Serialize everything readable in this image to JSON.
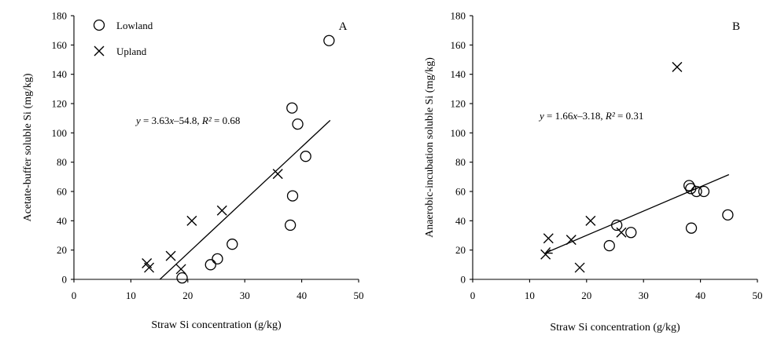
{
  "chart_data": [
    {
      "type": "scatter",
      "panel_label": "A",
      "xlabel": "Straw Si concentration (g/kg)",
      "ylabel": "Acetate-buffer soluble Si (mg/kg)",
      "xlim": [
        0,
        50
      ],
      "ylim": [
        0,
        180
      ],
      "x_ticks": [
        0,
        10,
        20,
        30,
        40,
        50
      ],
      "y_ticks": [
        0,
        20,
        40,
        60,
        80,
        100,
        120,
        140,
        160,
        180
      ],
      "grid": false,
      "legend": {
        "placement": "top-left",
        "entries": [
          "Lowland",
          "Upland"
        ]
      },
      "series": [
        {
          "name": "Lowland",
          "marker": "circle",
          "points": [
            [
              19,
              1
            ],
            [
              24,
              10
            ],
            [
              25.2,
              14
            ],
            [
              27.8,
              24
            ],
            [
              38,
              37
            ],
            [
              38.4,
              57
            ],
            [
              38.3,
              117
            ],
            [
              39.3,
              106
            ],
            [
              40.7,
              84
            ],
            [
              44.8,
              163
            ]
          ]
        },
        {
          "name": "Upland",
          "marker": "cross",
          "points": [
            [
              12.8,
              11
            ],
            [
              13.2,
              8
            ],
            [
              17,
              16
            ],
            [
              18.8,
              7
            ],
            [
              20.7,
              40
            ],
            [
              26,
              47
            ],
            [
              35.8,
              72
            ]
          ]
        }
      ],
      "fit": {
        "equation_parts": {
          "y": "y",
          "rhs": " = 3.63",
          "x": "x",
          "const": "–54.8, ",
          "r2": "R²",
          "r2val": " = 0.68"
        },
        "slope": 3.63,
        "intercept": -54.8,
        "x_range": [
          15.1,
          45
        ]
      }
    },
    {
      "type": "scatter",
      "panel_label": "B",
      "xlabel": "Straw Si concentration (g/kg)",
      "ylabel": "Anaerobic-incubation soluble Si (mg/kg)",
      "xlim": [
        0,
        50
      ],
      "ylim": [
        0,
        180
      ],
      "x_ticks": [
        0,
        10,
        20,
        30,
        40,
        50
      ],
      "y_ticks": [
        0,
        20,
        40,
        60,
        80,
        100,
        120,
        140,
        160,
        180
      ],
      "grid": false,
      "series": [
        {
          "name": "Lowland",
          "marker": "circle",
          "points": [
            [
              24,
              23
            ],
            [
              25.3,
              37
            ],
            [
              27.8,
              32
            ],
            [
              38,
              64
            ],
            [
              38.3,
              62
            ],
            [
              38.4,
              35
            ],
            [
              39.3,
              60
            ],
            [
              40.6,
              60
            ],
            [
              44.8,
              44
            ]
          ]
        },
        {
          "name": "Upland",
          "marker": "cross",
          "points": [
            [
              12.8,
              17
            ],
            [
              13.3,
              28
            ],
            [
              17.3,
              27
            ],
            [
              18.8,
              8
            ],
            [
              20.7,
              40
            ],
            [
              26.1,
              32
            ],
            [
              35.9,
              145
            ]
          ]
        }
      ],
      "fit": {
        "equation_parts": {
          "y": "y",
          "rhs": " = 1.66",
          "x": "x",
          "const": "–3.18, ",
          "r2": "R²",
          "r2val": " = 0.31"
        },
        "slope": 1.66,
        "intercept": -3.18,
        "x_range": [
          12.8,
          45
        ]
      }
    }
  ]
}
